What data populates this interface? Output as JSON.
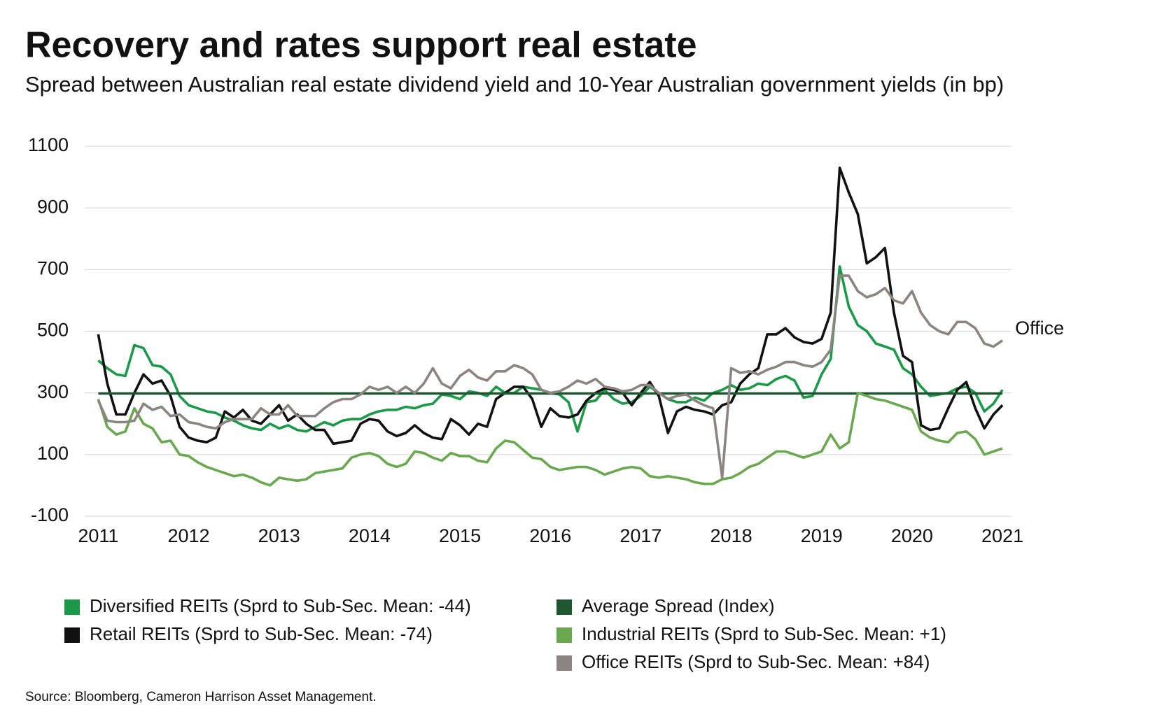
{
  "chart_data": {
    "type": "line",
    "title": "Recovery and rates support real estate",
    "subtitle": "Spread between Australian real estate dividend yield and 10-Year Australian government yields (in bp)",
    "source": "Source:  Bloomberg, Cameron Harrison Asset Management.",
    "annotation": "Office",
    "x": [
      2011,
      2011.1,
      2011.2,
      2011.3,
      2011.4,
      2011.5,
      2011.6,
      2011.7,
      2011.8,
      2011.9,
      2012,
      2012.1,
      2012.2,
      2012.3,
      2012.4,
      2012.5,
      2012.6,
      2012.7,
      2012.8,
      2012.9,
      2013,
      2013.1,
      2013.2,
      2013.3,
      2013.4,
      2013.5,
      2013.6,
      2013.7,
      2013.8,
      2013.9,
      2014,
      2014.1,
      2014.2,
      2014.3,
      2014.4,
      2014.5,
      2014.6,
      2014.7,
      2014.8,
      2014.9,
      2015,
      2015.1,
      2015.2,
      2015.3,
      2015.4,
      2015.5,
      2015.6,
      2015.7,
      2015.8,
      2015.9,
      2016,
      2016.1,
      2016.2,
      2016.3,
      2016.4,
      2016.5,
      2016.6,
      2016.7,
      2016.8,
      2016.9,
      2017,
      2017.1,
      2017.2,
      2017.3,
      2017.4,
      2017.5,
      2017.6,
      2017.7,
      2017.8,
      2017.9,
      2018,
      2018.1,
      2018.2,
      2018.3,
      2018.4,
      2018.5,
      2018.6,
      2018.7,
      2018.8,
      2018.9,
      2019,
      2019.1,
      2019.2,
      2019.3,
      2019.4,
      2019.5,
      2019.6,
      2019.7,
      2019.8,
      2019.9,
      2020,
      2020.1,
      2020.2,
      2020.3,
      2020.4,
      2020.5,
      2020.6,
      2020.7,
      2020.8,
      2020.9,
      2021
    ],
    "xlim": [
      2010.85,
      2021.1
    ],
    "xticks": [
      2011,
      2012,
      2013,
      2014,
      2015,
      2016,
      2017,
      2018,
      2019,
      2020,
      2021
    ],
    "ylim": [
      -100,
      1100
    ],
    "yticks": [
      -100,
      100,
      300,
      500,
      700,
      900,
      1100
    ],
    "grid": true,
    "series": [
      {
        "name": "Diversified REITs (Sprd to Sub-Sec. Mean: -44)",
        "color": "#1a9a48",
        "values": [
          405,
          380,
          360,
          355,
          455,
          445,
          390,
          385,
          360,
          290,
          260,
          250,
          240,
          235,
          220,
          210,
          195,
          185,
          180,
          200,
          185,
          195,
          180,
          175,
          190,
          205,
          195,
          210,
          215,
          215,
          230,
          240,
          245,
          245,
          255,
          250,
          260,
          265,
          295,
          290,
          280,
          305,
          300,
          290,
          320,
          300,
          300,
          320,
          315,
          310,
          300,
          295,
          270,
          175,
          270,
          275,
          310,
          280,
          265,
          270,
          290,
          320,
          300,
          280,
          270,
          270,
          285,
          275,
          300,
          310,
          325,
          310,
          315,
          330,
          325,
          345,
          355,
          340,
          285,
          290,
          360,
          410,
          710,
          580,
          520,
          500,
          460,
          450,
          440,
          380,
          360,
          320,
          290,
          295,
          300,
          315,
          320,
          300,
          240,
          265,
          310
        ]
      },
      {
        "name": "Retail REITs (Sprd to Sub-Sec. Mean: -74)",
        "color": "#111111",
        "values": [
          490,
          330,
          230,
          230,
          300,
          360,
          330,
          340,
          290,
          190,
          155,
          145,
          140,
          155,
          240,
          220,
          245,
          210,
          200,
          230,
          260,
          210,
          230,
          200,
          180,
          180,
          135,
          140,
          145,
          200,
          215,
          210,
          175,
          160,
          170,
          195,
          170,
          155,
          150,
          215,
          195,
          165,
          200,
          190,
          280,
          300,
          320,
          320,
          280,
          190,
          250,
          225,
          220,
          230,
          275,
          300,
          315,
          310,
          300,
          260,
          300,
          335,
          290,
          170,
          240,
          255,
          245,
          240,
          230,
          260,
          270,
          330,
          360,
          380,
          490,
          490,
          510,
          480,
          465,
          460,
          475,
          560,
          1030,
          950,
          880,
          720,
          740,
          770,
          560,
          420,
          400,
          195,
          180,
          185,
          250,
          310,
          335,
          250,
          185,
          230,
          260
        ]
      },
      {
        "name": "Average Spread (Index)",
        "color": "#1e5631",
        "values": [
          298,
          298,
          298,
          298,
          298,
          298,
          298,
          298,
          298,
          298,
          298,
          298,
          298,
          298,
          298,
          298,
          298,
          298,
          298,
          298,
          298,
          298,
          298,
          298,
          298,
          298,
          298,
          298,
          298,
          298,
          298,
          298,
          298,
          298,
          298,
          298,
          298,
          298,
          298,
          298,
          298,
          298,
          298,
          298,
          298,
          298,
          298,
          298,
          298,
          298,
          298,
          298,
          298,
          298,
          298,
          298,
          298,
          298,
          298,
          298,
          298,
          298,
          298,
          298,
          298,
          298,
          298,
          298,
          298,
          298,
          298,
          298,
          298,
          298,
          298,
          298,
          298,
          298,
          298,
          298,
          298,
          298,
          298,
          298,
          298,
          298,
          298,
          298,
          298,
          298,
          298,
          298,
          298,
          298,
          298,
          298,
          298,
          298,
          298,
          298,
          298
        ]
      },
      {
        "name": "Industrial REITs (Sprd to Sub-Sec. Mean: +1)",
        "color": "#6aa84f",
        "values": [
          280,
          190,
          165,
          175,
          250,
          200,
          185,
          140,
          145,
          100,
          95,
          75,
          60,
          50,
          40,
          30,
          35,
          25,
          10,
          0,
          25,
          20,
          15,
          20,
          40,
          45,
          50,
          55,
          90,
          100,
          105,
          95,
          70,
          60,
          70,
          110,
          105,
          90,
          80,
          105,
          95,
          95,
          80,
          75,
          120,
          145,
          140,
          115,
          90,
          85,
          60,
          50,
          55,
          60,
          60,
          50,
          35,
          45,
          55,
          60,
          55,
          30,
          25,
          30,
          25,
          20,
          10,
          5,
          5,
          20,
          25,
          40,
          60,
          70,
          90,
          110,
          110,
          100,
          90,
          100,
          110,
          165,
          120,
          140,
          300,
          290,
          280,
          275,
          265,
          255,
          245,
          175,
          155,
          145,
          140,
          170,
          175,
          150,
          100,
          110,
          120
        ]
      },
      {
        "name": "Office REITs (Sprd to Sub-Sec. Mean: +84)",
        "color": "#8c8480",
        "values": [
          275,
          210,
          205,
          205,
          210,
          265,
          245,
          255,
          225,
          230,
          205,
          200,
          190,
          185,
          205,
          215,
          215,
          215,
          250,
          230,
          230,
          260,
          225,
          225,
          225,
          250,
          270,
          280,
          280,
          295,
          320,
          310,
          320,
          300,
          320,
          300,
          330,
          380,
          330,
          315,
          355,
          375,
          350,
          340,
          370,
          370,
          390,
          380,
          360,
          310,
          300,
          305,
          320,
          340,
          330,
          345,
          320,
          315,
          305,
          310,
          325,
          325,
          300,
          280,
          290,
          295,
          275,
          260,
          250,
          25,
          380,
          365,
          370,
          360,
          375,
          385,
          400,
          400,
          390,
          385,
          400,
          440,
          680,
          680,
          630,
          610,
          620,
          640,
          600,
          590,
          630,
          560,
          520,
          500,
          490,
          530,
          530,
          510,
          460,
          450,
          470
        ]
      }
    ]
  }
}
